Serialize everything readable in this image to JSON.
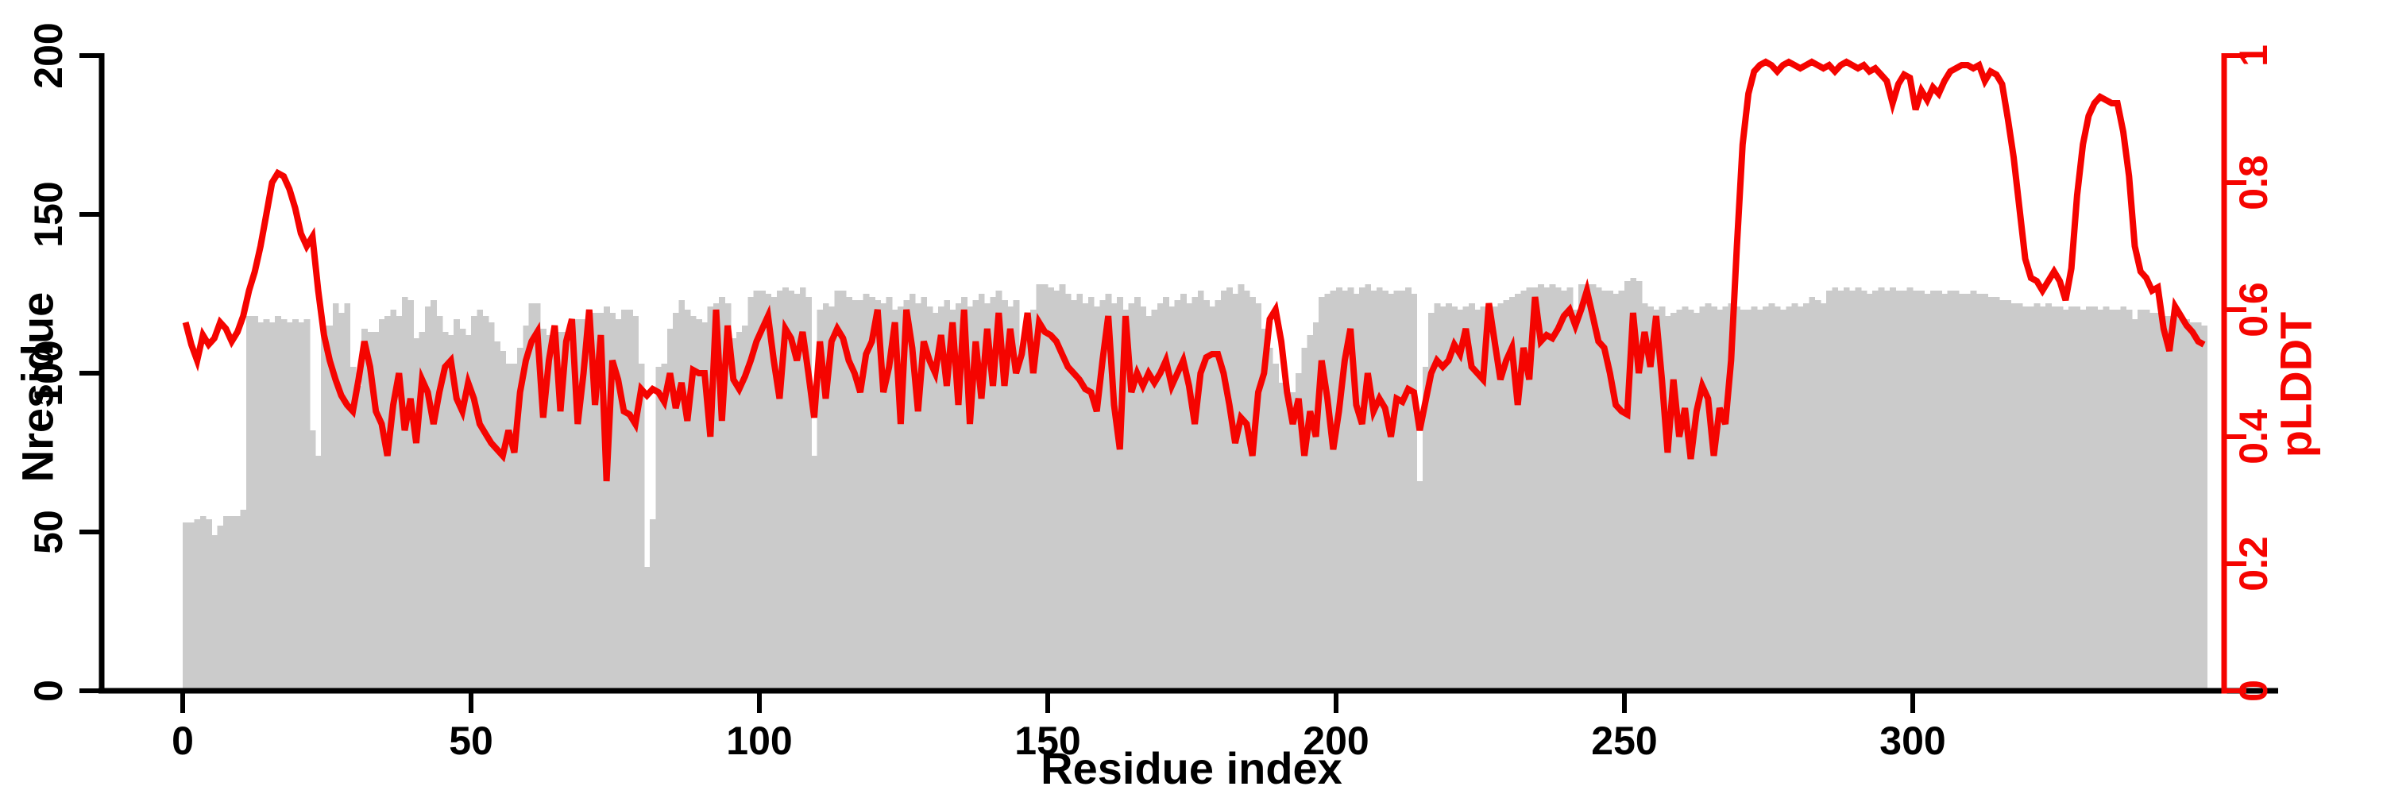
{
  "figure": {
    "background": "#ffffff",
    "bar_color": "#cbcbcb",
    "line_color": "#f50400",
    "axis_color": "#000000"
  },
  "chart_data": {
    "type": "bar+line",
    "x_axis": {
      "label": "Residue index",
      "ticks": [
        0,
        50,
        100,
        150,
        200,
        250,
        300
      ],
      "range": [
        0,
        351
      ]
    },
    "left_axis": {
      "label": "Nresidue",
      "ticks": [
        0,
        50,
        100,
        150,
        200
      ],
      "range": [
        0,
        200
      ],
      "color": "#000000"
    },
    "right_axis": {
      "label": "pLDDT",
      "ticks": [
        0,
        0.2,
        0.4,
        0.6,
        0.8,
        1
      ],
      "tick_labels": [
        "0",
        "0.2",
        "0.4",
        "0.6",
        "0.8",
        "1"
      ],
      "range": [
        0,
        1
      ],
      "color": "#f50400"
    },
    "grid": false,
    "legend": "none",
    "x_start": 0,
    "series": [
      {
        "name": "Nresidue",
        "type": "bar",
        "axis": "left",
        "color": "#cbcbcb",
        "values": [
          53,
          53,
          54,
          55,
          54,
          49,
          52,
          55,
          55,
          55,
          57,
          118,
          118,
          116,
          117,
          116,
          118,
          117,
          116,
          117,
          116,
          117,
          82,
          74,
          115,
          115,
          122,
          119,
          122,
          102,
          96,
          114,
          113,
          113,
          117,
          118,
          120,
          118,
          124,
          123,
          111,
          113,
          121,
          123,
          118,
          113,
          112,
          117,
          114,
          112,
          118,
          120,
          118,
          116,
          110,
          107,
          103,
          103,
          108,
          115,
          122,
          122,
          114,
          112,
          112,
          113,
          113,
          116,
          117,
          117,
          114,
          119,
          119,
          121,
          119,
          117,
          120,
          120,
          118,
          103,
          39,
          54,
          102,
          103,
          114,
          119,
          123,
          120,
          118,
          117,
          116,
          121,
          122,
          124,
          122,
          111,
          113,
          115,
          124,
          126,
          126,
          125,
          124,
          126,
          127,
          126,
          125,
          127,
          124,
          74,
          120,
          122,
          121,
          126,
          126,
          124,
          123,
          123,
          125,
          124,
          123,
          122,
          124,
          120,
          121,
          123,
          125,
          122,
          124,
          121,
          119,
          121,
          123,
          120,
          122,
          124,
          121,
          123,
          125,
          122,
          124,
          126,
          123,
          121,
          123,
          107,
          118,
          120,
          128,
          128,
          127,
          126,
          128,
          125,
          123,
          125,
          122,
          124,
          121,
          123,
          125,
          122,
          124,
          120,
          122,
          124,
          121,
          118,
          120,
          122,
          124,
          121,
          123,
          125,
          122,
          124,
          126,
          123,
          121,
          123,
          126,
          127,
          125,
          128,
          126,
          124,
          122,
          114,
          108,
          103,
          97,
          92,
          94,
          100,
          108,
          112,
          116,
          124,
          125,
          126,
          127,
          126,
          127,
          125,
          127,
          128,
          126,
          127,
          126,
          125,
          126,
          126,
          127,
          125,
          66,
          102,
          119,
          122,
          121,
          122,
          121,
          120,
          121,
          122,
          120,
          121,
          122,
          121,
          122,
          123,
          124,
          125,
          126,
          127,
          127,
          128,
          127,
          128,
          127,
          126,
          127,
          120,
          128,
          128,
          128,
          127,
          126,
          126,
          125,
          126,
          129,
          130,
          129,
          122,
          121,
          120,
          121,
          118,
          119,
          120,
          121,
          120,
          119,
          121,
          122,
          121,
          120,
          121,
          122,
          121,
          120,
          120,
          121,
          120,
          121,
          122,
          121,
          120,
          121,
          122,
          121,
          122,
          124,
          123,
          122,
          126,
          127,
          126,
          127,
          126,
          127,
          126,
          125,
          126,
          127,
          126,
          127,
          126,
          126,
          127,
          126,
          126,
          125,
          126,
          126,
          125,
          126,
          126,
          125,
          125,
          126,
          125,
          125,
          124,
          124,
          123,
          123,
          122,
          122,
          121,
          121,
          122,
          121,
          122,
          121,
          121,
          120,
          121,
          121,
          120,
          121,
          121,
          120,
          121,
          120,
          120,
          121,
          120,
          117,
          120,
          120,
          119,
          119,
          118,
          118,
          118,
          117,
          117,
          116,
          116,
          115
        ]
      },
      {
        "name": "pLDDT",
        "type": "line",
        "axis": "right",
        "color": "#f50400",
        "stroke_width": 8,
        "values": [
          0.58,
          0.545,
          0.52,
          0.56,
          0.545,
          0.555,
          0.58,
          0.57,
          0.55,
          0.565,
          0.59,
          0.63,
          0.66,
          0.7,
          0.75,
          0.8,
          0.815,
          0.81,
          0.79,
          0.76,
          0.72,
          0.7,
          0.715,
          0.63,
          0.56,
          0.52,
          0.49,
          0.465,
          0.45,
          0.44,
          0.49,
          0.55,
          0.51,
          0.44,
          0.42,
          0.37,
          0.45,
          0.5,
          0.41,
          0.46,
          0.39,
          0.49,
          0.47,
          0.42,
          0.47,
          0.51,
          0.52,
          0.46,
          0.44,
          0.485,
          0.46,
          0.42,
          0.405,
          0.39,
          0.38,
          0.37,
          0.41,
          0.375,
          0.47,
          0.52,
          0.55,
          0.565,
          0.43,
          0.52,
          0.575,
          0.44,
          0.55,
          0.585,
          0.42,
          0.5,
          0.6,
          0.45,
          0.56,
          0.33,
          0.52,
          0.49,
          0.44,
          0.435,
          0.42,
          0.475,
          0.465,
          0.475,
          0.47,
          0.455,
          0.5,
          0.445,
          0.485,
          0.425,
          0.505,
          0.5,
          0.5,
          0.4,
          0.6,
          0.425,
          0.575,
          0.49,
          0.475,
          0.495,
          0.52,
          0.55,
          0.57,
          0.59,
          0.52,
          0.46,
          0.57,
          0.555,
          0.52,
          0.565,
          0.5,
          0.43,
          0.55,
          0.46,
          0.55,
          0.57,
          0.555,
          0.52,
          0.5,
          0.47,
          0.53,
          0.55,
          0.6,
          0.47,
          0.51,
          0.58,
          0.42,
          0.6,
          0.54,
          0.44,
          0.55,
          0.52,
          0.5,
          0.56,
          0.48,
          0.58,
          0.45,
          0.6,
          0.42,
          0.55,
          0.46,
          0.57,
          0.48,
          0.595,
          0.48,
          0.57,
          0.5,
          0.53,
          0.595,
          0.5,
          0.58,
          0.565,
          0.56,
          0.55,
          0.53,
          0.51,
          0.5,
          0.49,
          0.475,
          0.47,
          0.44,
          0.52,
          0.59,
          0.45,
          0.38,
          0.59,
          0.47,
          0.5,
          0.48,
          0.5,
          0.485,
          0.5,
          0.52,
          0.48,
          0.5,
          0.52,
          0.48,
          0.42,
          0.5,
          0.525,
          0.53,
          0.53,
          0.5,
          0.45,
          0.39,
          0.43,
          0.42,
          0.37,
          0.47,
          0.5,
          0.585,
          0.6,
          0.55,
          0.47,
          0.42,
          0.46,
          0.37,
          0.44,
          0.4,
          0.52,
          0.46,
          0.38,
          0.44,
          0.52,
          0.57,
          0.45,
          0.42,
          0.5,
          0.44,
          0.46,
          0.445,
          0.4,
          0.46,
          0.455,
          0.475,
          0.47,
          0.41,
          0.455,
          0.5,
          0.52,
          0.51,
          0.52,
          0.545,
          0.53,
          0.57,
          0.51,
          0.5,
          0.49,
          0.61,
          0.55,
          0.49,
          0.52,
          0.54,
          0.45,
          0.54,
          0.49,
          0.62,
          0.55,
          0.56,
          0.555,
          0.57,
          0.59,
          0.6,
          0.575,
          0.6,
          0.63,
          0.59,
          0.55,
          0.54,
          0.5,
          0.45,
          0.44,
          0.435,
          0.595,
          0.5,
          0.565,
          0.51,
          0.59,
          0.49,
          0.375,
          0.49,
          0.4,
          0.445,
          0.365,
          0.44,
          0.48,
          0.46,
          0.37,
          0.445,
          0.42,
          0.52,
          0.7,
          0.86,
          0.94,
          0.975,
          0.985,
          0.99,
          0.985,
          0.975,
          0.985,
          0.99,
          0.985,
          0.98,
          0.985,
          0.99,
          0.985,
          0.98,
          0.985,
          0.975,
          0.985,
          0.99,
          0.985,
          0.98,
          0.985,
          0.975,
          0.98,
          0.97,
          0.96,
          0.925,
          0.955,
          0.97,
          0.965,
          0.915,
          0.945,
          0.93,
          0.95,
          0.94,
          0.96,
          0.975,
          0.98,
          0.985,
          0.985,
          0.98,
          0.985,
          0.96,
          0.975,
          0.97,
          0.955,
          0.9,
          0.84,
          0.76,
          0.68,
          0.65,
          0.645,
          0.63,
          0.645,
          0.66,
          0.645,
          0.615,
          0.665,
          0.78,
          0.86,
          0.905,
          0.925,
          0.935,
          0.93,
          0.925,
          0.925,
          0.88,
          0.81,
          0.7,
          0.66,
          0.65,
          0.63,
          0.635,
          0.57,
          0.535,
          0.605,
          0.59,
          0.575,
          0.565,
          0.55,
          0.545
        ]
      }
    ]
  }
}
